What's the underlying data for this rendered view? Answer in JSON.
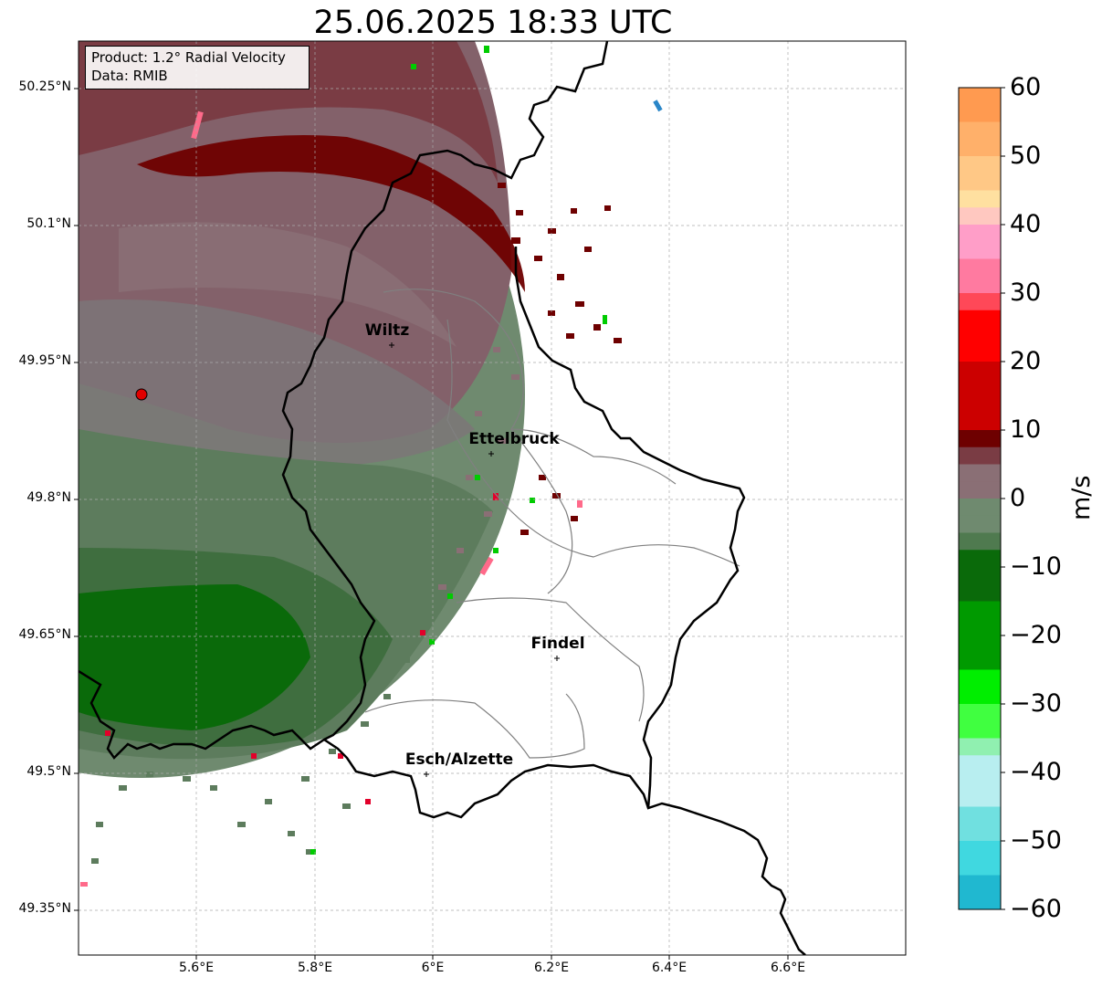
{
  "title": "25.06.2025 18:33 UTC",
  "info_box": {
    "line1": "Product: 1.2° Radial Velocity",
    "line2": "Data: RMIB"
  },
  "axes": {
    "lat_labels": [
      "50.25°N",
      "50.1°N",
      "49.95°N",
      "49.8°N",
      "49.65°N",
      "49.5°N",
      "49.35°N"
    ],
    "lon_labels": [
      "5.6°E",
      "5.8°E",
      "6°E",
      "6.2°E",
      "6.4°E",
      "6.6°E"
    ]
  },
  "cities": [
    {
      "name": "Wiltz"
    },
    {
      "name": "Ettelbruck"
    },
    {
      "name": "Findel"
    },
    {
      "name": "Esch/Alzette"
    }
  ],
  "colorbar": {
    "unit": "m/s",
    "ticks": [
      "60",
      "50",
      "40",
      "30",
      "20",
      "10",
      "0",
      "−10",
      "−20",
      "−30",
      "−40",
      "−50",
      "−60"
    ],
    "range": [
      -60,
      60
    ]
  },
  "colors": {
    "strong_outbound": "#6e0000",
    "weak_outbound": "#8a6f75",
    "weak_inbound": "#5d7c5d",
    "strong_inbound": "#0a6a0a",
    "border": "#000000"
  }
}
